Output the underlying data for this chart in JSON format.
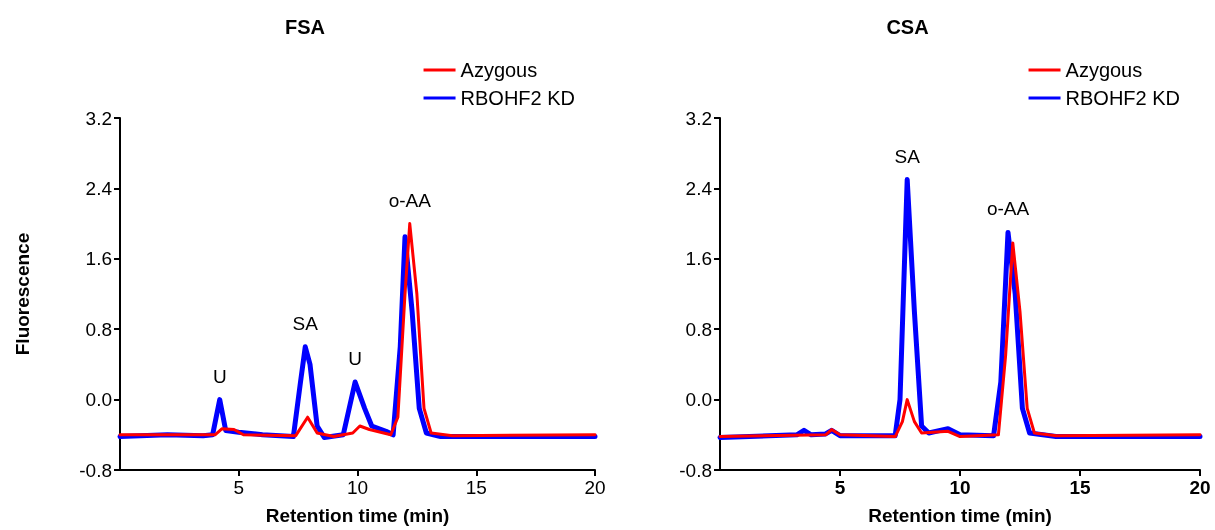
{
  "chart_data": [
    {
      "type": "line",
      "title": "FSA",
      "xlabel": "Retention time (min)",
      "ylabel": "Fluorescence",
      "xlim": [
        0,
        20
      ],
      "xticks": [
        5,
        10,
        15,
        20
      ],
      "ylim": [
        -0.8,
        3.2
      ],
      "yticks": [
        -0.8,
        {
          "value": 0,
          "label": "0.0"
        },
        0.8,
        1.6,
        2.4,
        3.2
      ],
      "grid": false,
      "legend": "top right",
      "marker": "none",
      "line_style": "solid",
      "series": [
        {
          "name": "RBOHF2 KD",
          "color": "#0000ff",
          "x": [
            0,
            2,
            3.5,
            3.9,
            4.2,
            4.45,
            5,
            6,
            7.3,
            7.6,
            7.8,
            8.0,
            8.3,
            8.6,
            9.4,
            9.9,
            10.3,
            10.6,
            11.2,
            11.5,
            11.8,
            12.0,
            12.3,
            12.6,
            12.9,
            13.5,
            16,
            20
          ],
          "values": [
            -0.42,
            -0.4,
            -0.41,
            -0.4,
            0.0,
            -0.35,
            -0.37,
            -0.4,
            -0.42,
            0.2,
            0.6,
            0.4,
            -0.3,
            -0.43,
            -0.4,
            0.2,
            -0.1,
            -0.3,
            -0.36,
            -0.4,
            0.6,
            1.85,
            1.0,
            -0.1,
            -0.38,
            -0.42,
            -0.42,
            -0.42
          ]
        },
        {
          "name": "Azygous",
          "color": "#ff0000",
          "x": [
            0,
            4.0,
            4.3,
            4.8,
            5.2,
            7.4,
            7.9,
            8.3,
            9,
            9.8,
            10.1,
            10.5,
            11.4,
            11.7,
            12.0,
            12.2,
            12.5,
            12.8,
            13.1,
            14,
            20
          ],
          "values": [
            -0.4,
            -0.4,
            -0.33,
            -0.34,
            -0.4,
            -0.41,
            -0.2,
            -0.38,
            -0.42,
            -0.38,
            -0.3,
            -0.34,
            -0.4,
            -0.2,
            1.2,
            2.0,
            1.2,
            -0.1,
            -0.38,
            -0.41,
            -0.4
          ]
        }
      ],
      "annotations": [
        {
          "text": "U",
          "x": 4.2,
          "y": 0.0
        },
        {
          "text": "SA",
          "x": 7.8,
          "y": 0.6
        },
        {
          "text": "U",
          "x": 9.9,
          "y": 0.2
        },
        {
          "text": "o-AA",
          "x": 12.2,
          "y": 2.0
        }
      ]
    },
    {
      "type": "line",
      "title": "CSA",
      "xlabel": "Retention time (min)",
      "xlim": [
        0,
        20
      ],
      "xticks": [
        5,
        10,
        15,
        20
      ],
      "ylim": [
        -0.8,
        3.2
      ],
      "yticks": [
        -0.8,
        {
          "value": 0,
          "label": "0.0"
        },
        0.8,
        1.6,
        2.4,
        3.2
      ],
      "grid": false,
      "legend": "top right",
      "marker": "none",
      "line_style": "solid",
      "series": [
        {
          "name": "RBOHF2 KD",
          "color": "#0000ff",
          "x": [
            0,
            3.2,
            3.5,
            3.8,
            4.4,
            4.65,
            5,
            7.3,
            7.5,
            7.8,
            8.1,
            8.4,
            8.7,
            9.5,
            10,
            11.4,
            11.7,
            12.0,
            12.3,
            12.6,
            12.9,
            14,
            20
          ],
          "values": [
            -0.43,
            -0.4,
            -0.35,
            -0.4,
            -0.39,
            -0.35,
            -0.41,
            -0.41,
            0.0,
            2.5,
            1.0,
            -0.3,
            -0.38,
            -0.33,
            -0.4,
            -0.41,
            0.2,
            1.9,
            1.2,
            -0.1,
            -0.38,
            -0.42,
            -0.42
          ]
        },
        {
          "name": "Azygous",
          "color": "#ff0000",
          "x": [
            0,
            4.4,
            4.65,
            5,
            7.3,
            7.6,
            7.8,
            8.1,
            8.4,
            9.5,
            10,
            11.6,
            11.9,
            12.2,
            12.5,
            12.8,
            13.1,
            14,
            20
          ],
          "values": [
            -0.42,
            -0.4,
            -0.34,
            -0.4,
            -0.42,
            -0.25,
            0.0,
            -0.25,
            -0.38,
            -0.36,
            -0.42,
            -0.4,
            0.5,
            1.78,
            1.0,
            -0.1,
            -0.38,
            -0.41,
            -0.4
          ]
        }
      ],
      "annotations": [
        {
          "text": "SA",
          "x": 7.8,
          "y": 2.5
        },
        {
          "text": "o-AA",
          "x": 12.0,
          "y": 1.9
        }
      ]
    }
  ]
}
